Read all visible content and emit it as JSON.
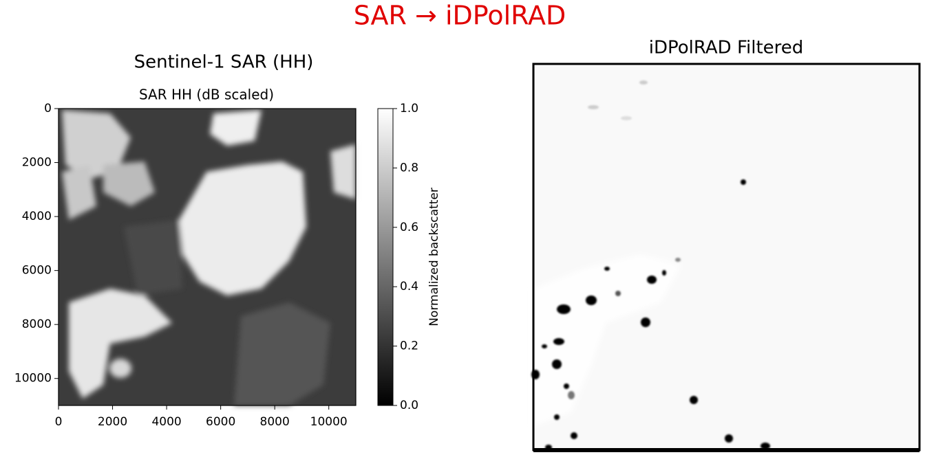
{
  "title": "SAR → iDPolRAD",
  "chart_data": [
    {
      "type": "image",
      "title": "Sentinel-1 SAR (HH)",
      "subtitle": "SAR HH (dB scaled)",
      "xlim": [
        0,
        11000
      ],
      "ylim": [
        0,
        11000
      ],
      "y_inverted": true,
      "xticks": [
        0,
        2000,
        4000,
        6000,
        8000,
        10000
      ],
      "yticks": [
        0,
        2000,
        4000,
        6000,
        8000,
        10000
      ],
      "colormap": "gray",
      "colorbar": {
        "label": "Normalized backscatter",
        "lim": [
          0,
          1
        ],
        "ticks": [
          {
            "value": 0,
            "label": "0.0"
          },
          0.2,
          0.4,
          0.6,
          0.8,
          {
            "value": 1,
            "label": "1.0"
          }
        ]
      }
    },
    {
      "type": "image",
      "title": "iDPolRAD Filtered",
      "colormap": "gray"
    }
  ]
}
